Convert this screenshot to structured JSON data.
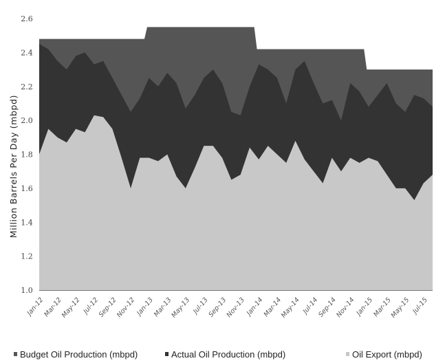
{
  "chart_data": {
    "type": "area",
    "ylabel": "Million Barrels Per Day (mbpd)",
    "xlabel": "",
    "title": "",
    "ylim": [
      1.0,
      2.6
    ],
    "yticks": [
      "1.0",
      "1.2",
      "1.4",
      "1.6",
      "1.8",
      "2.0",
      "2.2",
      "2.4",
      "2.6"
    ],
    "ytick_values": [
      1.0,
      1.2,
      1.4,
      1.6,
      1.8,
      2.0,
      2.2,
      2.4,
      2.6
    ],
    "grid": false,
    "legend_position": "bottom",
    "categories": [
      "Jan-12",
      "Feb-12",
      "Mar-12",
      "Apr-12",
      "May-12",
      "Jun-12",
      "Jul-12",
      "Aug-12",
      "Sep-12",
      "Oct-12",
      "Nov-12",
      "Dec-12",
      "Jan-13",
      "Feb-13",
      "Mar-13",
      "Apr-13",
      "May-13",
      "Jun-13",
      "Jul-13",
      "Aug-13",
      "Sep-13",
      "Oct-13",
      "Nov-13",
      "Dec-13",
      "Jan-14",
      "Feb-14",
      "Mar-14",
      "Apr-14",
      "May-14",
      "Jun-14",
      "Jul-14",
      "Aug-14",
      "Sep-14",
      "Oct-14",
      "Nov-14",
      "Dec-14",
      "Jan-15",
      "Feb-15",
      "Mar-15",
      "Apr-15",
      "May-15",
      "Jun-15",
      "Jul-15",
      "Aug-15"
    ],
    "x_tick_labels": [
      "Jan-12",
      "Mar-12",
      "May-12",
      "Jul-12",
      "Sep-12",
      "Nov-12",
      "Jan-13",
      "Mar-13",
      "May-13",
      "Jul-13",
      "Sep-13",
      "Nov-13",
      "Jan-14",
      "Mar-14",
      "May-14",
      "Jul-14",
      "Sep-14",
      "Nov-14",
      "Jan-15",
      "Mar-15",
      "May-15",
      "Jul-15"
    ],
    "series": [
      {
        "name": "Budget Oil Production (mbpd)",
        "color": "#555555",
        "values": [
          2.48,
          2.48,
          2.48,
          2.48,
          2.48,
          2.48,
          2.48,
          2.48,
          2.48,
          2.48,
          2.48,
          2.48,
          2.55,
          2.55,
          2.55,
          2.55,
          2.55,
          2.55,
          2.55,
          2.55,
          2.55,
          2.55,
          2.55,
          2.55,
          2.42,
          2.42,
          2.42,
          2.42,
          2.42,
          2.42,
          2.42,
          2.42,
          2.42,
          2.42,
          2.42,
          2.42,
          2.3,
          2.3,
          2.3,
          2.3,
          2.3,
          2.3,
          2.3,
          2.3
        ]
      },
      {
        "name": "Actual Oil Production (mbpd)",
        "color": "#333333",
        "values": [
          2.45,
          2.42,
          2.35,
          2.3,
          2.38,
          2.4,
          2.33,
          2.35,
          2.25,
          2.15,
          2.05,
          2.13,
          2.25,
          2.2,
          2.28,
          2.22,
          2.07,
          2.15,
          2.25,
          2.3,
          2.22,
          2.05,
          2.03,
          2.2,
          2.33,
          2.3,
          2.25,
          2.1,
          2.3,
          2.35,
          2.22,
          2.1,
          2.12,
          2.0,
          2.22,
          2.17,
          2.08,
          2.15,
          2.22,
          2.1,
          2.05,
          2.15,
          2.13,
          2.08
        ]
      },
      {
        "name": "Oil Export (mbpd)",
        "color": "#c8c8c8",
        "values": [
          1.8,
          1.95,
          1.9,
          1.87,
          1.95,
          1.93,
          2.03,
          2.02,
          1.95,
          1.78,
          1.6,
          1.78,
          1.78,
          1.76,
          1.8,
          1.67,
          1.6,
          1.72,
          1.85,
          1.85,
          1.78,
          1.65,
          1.68,
          1.84,
          1.77,
          1.85,
          1.8,
          1.75,
          1.88,
          1.77,
          1.7,
          1.63,
          1.78,
          1.7,
          1.78,
          1.75,
          1.78,
          1.76,
          1.68,
          1.6,
          1.6,
          1.53,
          1.63,
          1.68
        ]
      }
    ]
  }
}
